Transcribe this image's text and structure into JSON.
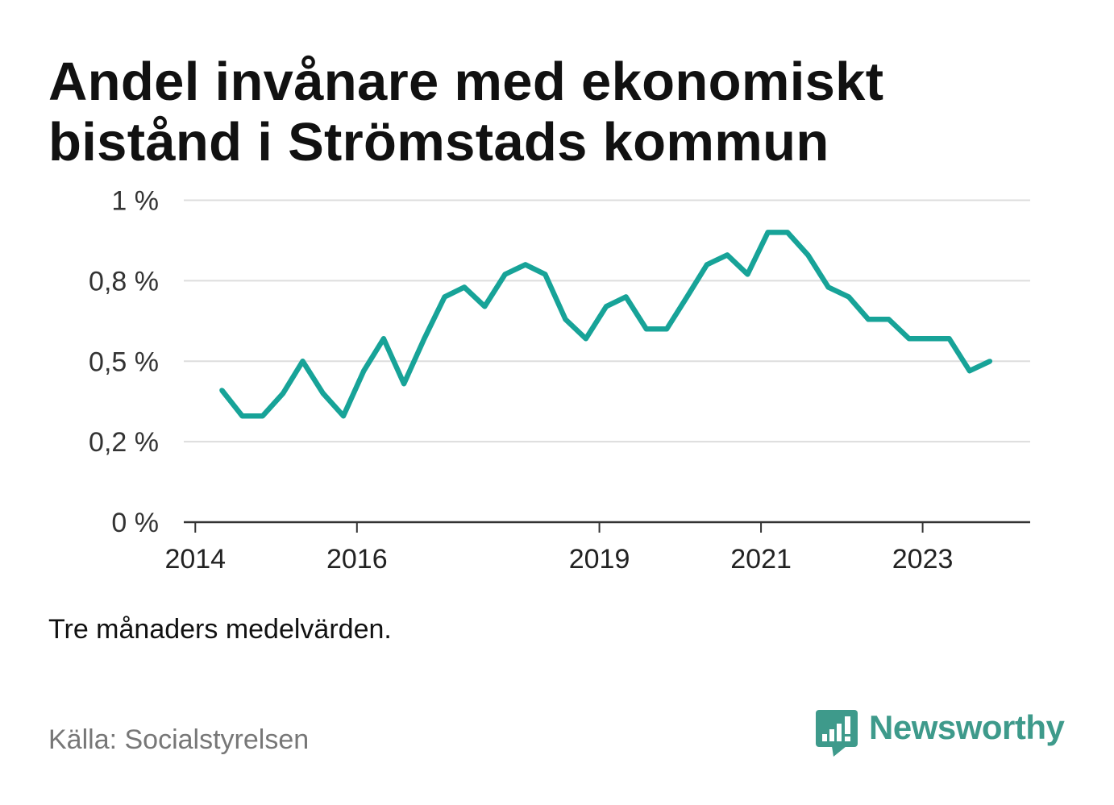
{
  "chart_data": {
    "type": "line",
    "title": "Andel invånare med ekonomiskt bistånd i Strömstads kommun",
    "x": [
      "2014-05",
      "2014-08",
      "2014-11",
      "2015-02",
      "2015-05",
      "2015-08",
      "2015-11",
      "2016-02",
      "2016-05",
      "2016-08",
      "2016-11",
      "2017-02",
      "2017-05",
      "2017-08",
      "2017-11",
      "2018-02",
      "2018-05",
      "2018-08",
      "2018-11",
      "2019-02",
      "2019-05",
      "2019-08",
      "2019-11",
      "2020-02",
      "2020-05",
      "2020-08",
      "2020-11",
      "2021-02",
      "2021-05",
      "2021-08",
      "2021-11",
      "2022-02",
      "2022-05",
      "2022-08",
      "2022-11",
      "2023-02",
      "2023-05",
      "2023-08",
      "2023-11"
    ],
    "series": [
      {
        "color": "#17a398",
        "values": [
          0.41,
          0.33,
          0.33,
          0.4,
          0.5,
          0.4,
          0.33,
          0.47,
          0.57,
          0.43,
          0.57,
          0.7,
          0.73,
          0.67,
          0.77,
          0.8,
          0.77,
          0.63,
          0.57,
          0.67,
          0.7,
          0.6,
          0.6,
          0.7,
          0.8,
          0.83,
          0.77,
          0.9,
          0.9,
          0.83,
          0.73,
          0.7,
          0.63,
          0.63,
          0.57,
          0.57,
          0.57,
          0.47,
          0.5
        ]
      }
    ],
    "ylim": [
      0,
      1
    ],
    "xlim": [
      "2013-11-10",
      "2024-05-01"
    ],
    "y_ticks": [
      {
        "value": 0,
        "label": "0 %"
      },
      {
        "value": 0.25,
        "label": "0,2 %"
      },
      {
        "value": 0.5,
        "label": "0,5 %"
      },
      {
        "value": 0.75,
        "label": "0,8 %"
      },
      {
        "value": 1,
        "label": "1 %"
      }
    ],
    "x_ticks": [
      {
        "value": "2014-01-01",
        "label": "2014"
      },
      {
        "value": "2016-01-01",
        "label": "2016"
      },
      {
        "value": "2019-01-01",
        "label": "2019"
      },
      {
        "value": "2021-01-01",
        "label": "2021"
      },
      {
        "value": "2023-01-01",
        "label": "2023"
      }
    ],
    "grid": true,
    "note": "Tre månaders medelvärden.",
    "source": "Källa: Socialstyrelsen"
  },
  "brand": {
    "name": "Newsworthy",
    "icon": "newsworthy-logo-icon",
    "color": "#3e9a8b"
  },
  "colors": {
    "background": "#ffffff",
    "title": "#111111",
    "grid": "#dddddd",
    "axis": "#333333",
    "tick_text": "#333333",
    "note": "#111111",
    "source": "#777777"
  }
}
